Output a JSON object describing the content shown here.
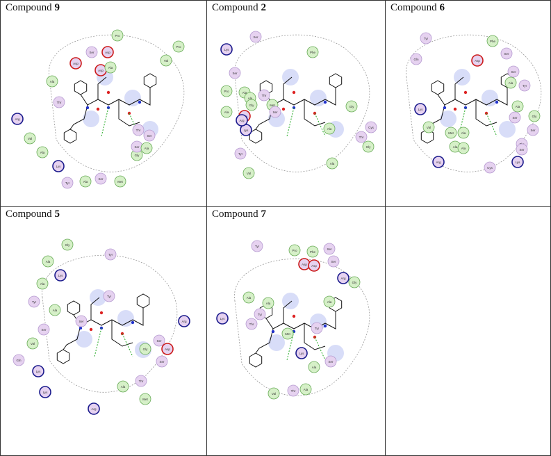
{
  "colors": {
    "hydrophobic": "#d6f0c8",
    "polar": "#e6d2f0",
    "charged_positive": "#e6d2f0",
    "charged_negative": "#e6d2f0",
    "ring_positive": "#1a1a8c",
    "ring_negative": "#cc1a1a",
    "solvent_blue": "#a8b4f0",
    "bond": "#111111",
    "oxygen": "#dd2222",
    "nitrogen": "#2233cc",
    "hbond": "#22aa22",
    "pocket": "#999999"
  },
  "panels": [
    {
      "prefix": "Compound ",
      "number": "9",
      "residues": [
        {
          "label": "Pro",
          "kind": "h"
        },
        {
          "label": "Pro",
          "kind": "h"
        },
        {
          "label": "Val",
          "kind": "h"
        },
        {
          "label": "Ser",
          "kind": "p"
        },
        {
          "label": "Asp",
          "kind": "n"
        },
        {
          "label": "Asp",
          "kind": "n"
        },
        {
          "label": "Asp",
          "kind": "n"
        },
        {
          "label": "Ala",
          "kind": "h"
        },
        {
          "label": "Ala",
          "kind": "h"
        },
        {
          "label": "Thr",
          "kind": "p"
        },
        {
          "label": "Arg",
          "kind": "c"
        },
        {
          "label": "Val",
          "kind": "h"
        },
        {
          "label": "Ala",
          "kind": "h"
        },
        {
          "label": "Lys",
          "kind": "c"
        },
        {
          "label": "Tyr",
          "kind": "p"
        },
        {
          "label": "Ala",
          "kind": "h"
        },
        {
          "label": "Ser",
          "kind": "p"
        },
        {
          "label": "Met",
          "kind": "h"
        },
        {
          "label": "Thr",
          "kind": "p"
        },
        {
          "label": "Gly",
          "kind": "h"
        },
        {
          "label": "Ser",
          "kind": "p"
        },
        {
          "label": "Ser",
          "kind": "p"
        },
        {
          "label": "Ala",
          "kind": "h"
        }
      ]
    },
    {
      "prefix": "Compound ",
      "number": "2",
      "residues": [
        {
          "label": "Ser",
          "kind": "p"
        },
        {
          "label": "Lys",
          "kind": "c"
        },
        {
          "label": "Phe",
          "kind": "h"
        },
        {
          "label": "Ser",
          "kind": "p"
        },
        {
          "label": "Pro",
          "kind": "h"
        },
        {
          "label": "Ala",
          "kind": "h"
        },
        {
          "label": "Ala",
          "kind": "h"
        },
        {
          "label": "Thr",
          "kind": "p"
        },
        {
          "label": "Gly",
          "kind": "h"
        },
        {
          "label": "Asp",
          "kind": "n"
        },
        {
          "label": "Met",
          "kind": "h"
        },
        {
          "label": "Ser",
          "kind": "p"
        },
        {
          "label": "Ala",
          "kind": "h"
        },
        {
          "label": "Lys",
          "kind": "c"
        },
        {
          "label": "Arg",
          "kind": "c"
        },
        {
          "label": "Tyr",
          "kind": "p"
        },
        {
          "label": "Val",
          "kind": "h"
        },
        {
          "label": "Ala",
          "kind": "h"
        },
        {
          "label": "Gly",
          "kind": "h"
        },
        {
          "label": "Cys",
          "kind": "p"
        },
        {
          "label": "Gly",
          "kind": "h"
        },
        {
          "label": "Thr",
          "kind": "p"
        },
        {
          "label": "Ala",
          "kind": "h"
        }
      ]
    },
    {
      "prefix": "Compound ",
      "number": "6",
      "residues": [
        {
          "label": "Tyr",
          "kind": "p"
        },
        {
          "label": "Phe",
          "kind": "h"
        },
        {
          "label": "Gln",
          "kind": "p"
        },
        {
          "label": "Asp",
          "kind": "n"
        },
        {
          "label": "Ser",
          "kind": "p"
        },
        {
          "label": "Ser",
          "kind": "p"
        },
        {
          "label": "Ala",
          "kind": "h"
        },
        {
          "label": "Tyr",
          "kind": "p"
        },
        {
          "label": "Lys",
          "kind": "c"
        },
        {
          "label": "Ala",
          "kind": "h"
        },
        {
          "label": "Val",
          "kind": "h"
        },
        {
          "label": "Met",
          "kind": "h"
        },
        {
          "label": "Ala",
          "kind": "h"
        },
        {
          "label": "Ala",
          "kind": "h"
        },
        {
          "label": "Ala",
          "kind": "h"
        },
        {
          "label": "Ser",
          "kind": "p"
        },
        {
          "label": "Ser",
          "kind": "p"
        },
        {
          "label": "Thr",
          "kind": "p"
        },
        {
          "label": "Ser",
          "kind": "p"
        },
        {
          "label": "Arg",
          "kind": "c"
        },
        {
          "label": "Cys",
          "kind": "p"
        },
        {
          "label": "Lys",
          "kind": "c"
        },
        {
          "label": "Gly",
          "kind": "h"
        }
      ]
    },
    {
      "prefix": "Compound ",
      "number": "5",
      "residues": [
        {
          "label": "Gly",
          "kind": "h"
        },
        {
          "label": "Tyr",
          "kind": "p"
        },
        {
          "label": "Ala",
          "kind": "h"
        },
        {
          "label": "Ala",
          "kind": "h"
        },
        {
          "label": "Lys",
          "kind": "c"
        },
        {
          "label": "Tyr",
          "kind": "p"
        },
        {
          "label": "Tyr",
          "kind": "p"
        },
        {
          "label": "Ala",
          "kind": "h"
        },
        {
          "label": "Ser",
          "kind": "p"
        },
        {
          "label": "Ser",
          "kind": "p"
        },
        {
          "label": "Val",
          "kind": "h"
        },
        {
          "label": "Gln",
          "kind": "p"
        },
        {
          "label": "Arg",
          "kind": "c"
        },
        {
          "label": "Lys",
          "kind": "c"
        },
        {
          "label": "Lys",
          "kind": "c"
        },
        {
          "label": "Arg",
          "kind": "c"
        },
        {
          "label": "Ser",
          "kind": "p"
        },
        {
          "label": "Asp",
          "kind": "n"
        },
        {
          "label": "Gly",
          "kind": "h"
        },
        {
          "label": "Ser",
          "kind": "p"
        },
        {
          "label": "Thr",
          "kind": "p"
        },
        {
          "label": "Ala",
          "kind": "h"
        },
        {
          "label": "Met",
          "kind": "h"
        }
      ]
    },
    {
      "prefix": "Compound ",
      "number": "7",
      "residues": [
        {
          "label": "Tyr",
          "kind": "p"
        },
        {
          "label": "Pro",
          "kind": "h"
        },
        {
          "label": "Phe",
          "kind": "h"
        },
        {
          "label": "Ser",
          "kind": "p"
        },
        {
          "label": "Asp",
          "kind": "n"
        },
        {
          "label": "Asp",
          "kind": "n"
        },
        {
          "label": "Ser",
          "kind": "p"
        },
        {
          "label": "Arg",
          "kind": "c"
        },
        {
          "label": "Gly",
          "kind": "h"
        },
        {
          "label": "Ala",
          "kind": "h"
        },
        {
          "label": "Ala",
          "kind": "h"
        },
        {
          "label": "Tyr",
          "kind": "p"
        },
        {
          "label": "Lys",
          "kind": "c"
        },
        {
          "label": "Ala",
          "kind": "h"
        },
        {
          "label": "Thr",
          "kind": "p"
        },
        {
          "label": "Met",
          "kind": "h"
        },
        {
          "label": "Tyr",
          "kind": "p"
        },
        {
          "label": "Lys",
          "kind": "c"
        },
        {
          "label": "Ser",
          "kind": "p"
        },
        {
          "label": "Val",
          "kind": "h"
        },
        {
          "label": "Thr",
          "kind": "p"
        },
        {
          "label": "Ala",
          "kind": "h"
        },
        {
          "label": "Ala",
          "kind": "h"
        }
      ]
    }
  ]
}
